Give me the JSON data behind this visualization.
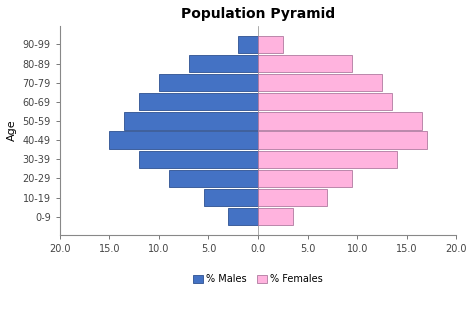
{
  "title": "Population Pyramid",
  "age_groups": [
    "0-9",
    "10-19",
    "20-29",
    "30-39",
    "40-49",
    "50-59",
    "60-69",
    "70-79",
    "80-89",
    "90-99"
  ],
  "males": [
    3.0,
    5.5,
    9.0,
    12.0,
    15.0,
    13.5,
    12.0,
    10.0,
    7.0,
    2.0
  ],
  "females": [
    3.5,
    7.0,
    9.5,
    14.0,
    17.0,
    16.5,
    13.5,
    12.5,
    9.5,
    2.5
  ],
  "male_color": "#4472C4",
  "female_color": "#FFB3DE",
  "male_edge_color": "#2E5090",
  "female_edge_color": "#B07AA0",
  "xlim": [
    -20,
    20
  ],
  "xticks": [
    -20,
    -15,
    -10,
    -5,
    0,
    5,
    10,
    15,
    20
  ],
  "xtick_labels": [
    "20.0",
    "15.0",
    "10.0",
    "5.0",
    "0.0",
    "5.0",
    "10.0",
    "15.0",
    "20.0"
  ],
  "ylabel": "Age",
  "legend_male": "% Males",
  "legend_female": "% Females",
  "title_fontsize": 10,
  "axis_fontsize": 7,
  "label_fontsize": 8,
  "tick_fontsize": 7,
  "bar_height": 0.9,
  "background_color": "#FFFFFF"
}
